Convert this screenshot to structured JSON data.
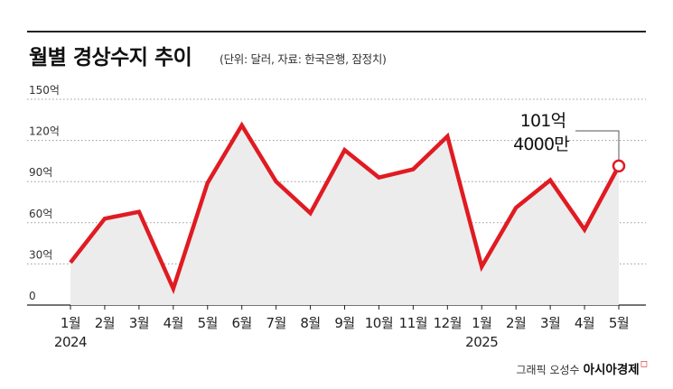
{
  "chart_data": {
    "type": "area",
    "title": "월별 경상수지 추이",
    "subtitle": "(단위: 달러, 자료: 한국은행, 잠정치)",
    "yticks": [
      "150억",
      "120억",
      "90억",
      "60억",
      "30억",
      "0"
    ],
    "ylim": [
      0,
      150
    ],
    "categories": [
      "1월",
      "2월",
      "3월",
      "4월",
      "5월",
      "6월",
      "7월",
      "8월",
      "9월",
      "10월",
      "11월",
      "12월",
      "1월",
      "2월",
      "3월",
      "4월",
      "5월"
    ],
    "year_labels": [
      {
        "index": 0,
        "label": "2024"
      },
      {
        "index": 12,
        "label": "2025"
      }
    ],
    "values": [
      31,
      63,
      68,
      12,
      89,
      131,
      90,
      67,
      113,
      93,
      99,
      123,
      28,
      71,
      91,
      55,
      101.4
    ],
    "annotation": {
      "index": 16,
      "line1": "101억",
      "line2": "4000만"
    },
    "grid": true,
    "colors": {
      "line": "#e01b22",
      "fill": "#ececec",
      "grid": "#9a9a9a"
    }
  },
  "credit": {
    "text": "그래픽 오성수",
    "brand": "아시아경제",
    "mark": "ㅁ"
  }
}
